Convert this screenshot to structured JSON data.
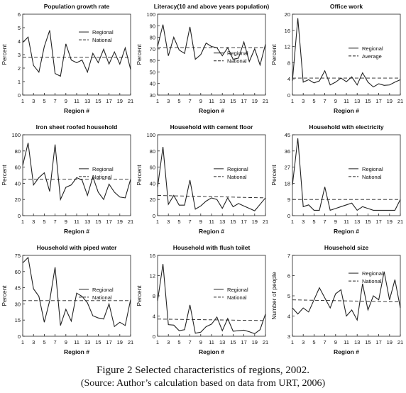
{
  "caption": {
    "line1": "Figure 2   Selected characteristics of regions, 2002.",
    "line2": "(Source: Author’s calculation based on data from URT, 2006)"
  },
  "colors": {
    "line": "#222222",
    "background": "#ffffff"
  },
  "chart_data": [
    {
      "type": "line",
      "title": "Population growth rate",
      "xlabel": "Region #",
      "ylabel": "Percent",
      "xlim": [
        1,
        21
      ],
      "ylim": [
        0,
        6
      ],
      "yticks": [
        0,
        1,
        2,
        3,
        4,
        5,
        6
      ],
      "xticks": [
        1,
        3,
        5,
        7,
        9,
        11,
        13,
        15,
        17,
        19,
        21
      ],
      "grid": false,
      "legend": "top-right",
      "series": [
        {
          "name": "Regional",
          "style": "solid",
          "x": [
            1,
            2,
            3,
            4,
            5,
            6,
            7,
            8,
            9,
            10,
            11,
            12,
            13,
            14,
            15,
            16,
            17,
            18,
            19,
            20,
            21
          ],
          "values": [
            3.9,
            4.3,
            2.2,
            1.7,
            3.6,
            4.8,
            1.6,
            1.4,
            3.8,
            2.6,
            2.4,
            2.6,
            1.7,
            3.1,
            2.4,
            3.4,
            2.3,
            3.2,
            2.3,
            3.5,
            1.9
          ]
        },
        {
          "name": "National",
          "style": "dashed",
          "x": [
            1,
            21
          ],
          "values": [
            2.8,
            2.8
          ]
        }
      ]
    },
    {
      "type": "line",
      "title": "Literacy(10 and above years population)",
      "xlabel": "Region #",
      "ylabel": "Percent",
      "xlim": [
        1,
        21
      ],
      "ylim": [
        30,
        100
      ],
      "yticks": [
        30,
        40,
        50,
        60,
        70,
        80,
        90,
        100
      ],
      "xticks": [
        1,
        3,
        5,
        7,
        9,
        11,
        13,
        15,
        17,
        19,
        21
      ],
      "grid": false,
      "legend": "right",
      "series": [
        {
          "name": "Regional",
          "style": "solid",
          "x": [
            1,
            2,
            3,
            4,
            5,
            6,
            7,
            8,
            9,
            10,
            11,
            12,
            13,
            14,
            15,
            16,
            17,
            18,
            19,
            20,
            21
          ],
          "values": [
            72,
            91,
            64,
            80,
            69,
            66,
            89,
            61,
            65,
            75,
            72,
            71,
            64,
            71,
            61,
            62,
            76,
            59,
            70,
            56,
            74
          ]
        },
        {
          "name": "National",
          "style": "dashed",
          "x": [
            1,
            21
          ],
          "values": [
            71,
            71
          ]
        }
      ]
    },
    {
      "type": "line",
      "title": "Office work",
      "xlabel": "Region #",
      "ylabel": "Percent",
      "xlim": [
        1,
        21
      ],
      "ylim": [
        0,
        20
      ],
      "yticks": [
        0,
        4,
        8,
        12,
        16,
        20
      ],
      "xticks": [
        1,
        3,
        5,
        7,
        9,
        11,
        13,
        15,
        17,
        19,
        21
      ],
      "grid": false,
      "legend": "right",
      "series": [
        {
          "name": "Regional",
          "style": "solid",
          "x": [
            1,
            2,
            3,
            4,
            5,
            6,
            7,
            8,
            9,
            10,
            11,
            12,
            13,
            14,
            15,
            16,
            17,
            18,
            19,
            20,
            21
          ],
          "values": [
            3.5,
            19,
            3.2,
            3.8,
            3.0,
            3.5,
            6,
            2.5,
            3.2,
            4.2,
            3.3,
            4.5,
            2.5,
            5.5,
            3.2,
            2.0,
            2.8,
            2.4,
            2.5,
            3.2,
            3.8
          ]
        },
        {
          "name": "Average",
          "style": "dashed",
          "x": [
            1,
            21
          ],
          "values": [
            4.2,
            4.2
          ]
        }
      ]
    },
    {
      "type": "line",
      "title": "Iron sheet roofed household",
      "xlabel": "Region #",
      "ylabel": "Percent",
      "xlim": [
        1,
        21
      ],
      "ylim": [
        0,
        100
      ],
      "yticks": [
        0,
        20,
        40,
        60,
        80,
        100
      ],
      "xticks": [
        1,
        3,
        5,
        7,
        9,
        11,
        13,
        15,
        17,
        19,
        21
      ],
      "grid": false,
      "legend": "right",
      "series": [
        {
          "name": "Regional",
          "style": "solid",
          "x": [
            1,
            2,
            3,
            4,
            5,
            6,
            7,
            8,
            9,
            10,
            11,
            12,
            13,
            14,
            15,
            16,
            17,
            18,
            19,
            20,
            21
          ],
          "values": [
            62,
            90,
            38,
            47,
            53,
            30,
            88,
            20,
            35,
            38,
            47,
            44,
            25,
            48,
            29,
            20,
            39,
            29,
            23,
            22,
            45
          ]
        },
        {
          "name": "National",
          "style": "dashed",
          "x": [
            1,
            21
          ],
          "values": [
            45,
            45
          ]
        }
      ]
    },
    {
      "type": "line",
      "title": "Household with cement floor",
      "xlabel": "Region #",
      "ylabel": "Percent",
      "xlim": [
        1,
        21
      ],
      "ylim": [
        0,
        100
      ],
      "yticks": [
        0,
        20,
        40,
        60,
        80,
        100
      ],
      "xticks": [
        1,
        3,
        5,
        7,
        9,
        11,
        13,
        15,
        17,
        19,
        21
      ],
      "grid": false,
      "legend": "right",
      "series": [
        {
          "name": "Regional",
          "style": "solid",
          "x": [
            1,
            2,
            3,
            4,
            5,
            6,
            7,
            8,
            9,
            10,
            11,
            12,
            13,
            14,
            15,
            16,
            17,
            18,
            19,
            20,
            21
          ],
          "values": [
            35,
            85,
            14,
            25,
            13,
            13,
            44,
            8,
            12,
            18,
            22,
            20,
            9,
            22,
            11,
            15,
            12,
            9,
            6,
            14,
            22
          ]
        },
        {
          "name": "National",
          "style": "dashed",
          "x": [
            1,
            21
          ],
          "values": [
            25,
            22
          ]
        }
      ]
    },
    {
      "type": "line",
      "title": "Household with electricity",
      "xlabel": "Region #",
      "ylabel": "Percent",
      "xlim": [
        1,
        21
      ],
      "ylim": [
        0,
        45
      ],
      "yticks": [
        0,
        9,
        18,
        27,
        36,
        45
      ],
      "xticks": [
        1,
        3,
        5,
        7,
        9,
        11,
        13,
        15,
        17,
        19,
        21
      ],
      "grid": false,
      "legend": "right",
      "series": [
        {
          "name": "Regional",
          "style": "solid",
          "x": [
            1,
            2,
            3,
            4,
            5,
            6,
            7,
            8,
            9,
            10,
            11,
            12,
            13,
            14,
            15,
            16,
            17,
            18,
            19,
            20,
            21
          ],
          "values": [
            17,
            43,
            5,
            6,
            3,
            3,
            16,
            3,
            4,
            5,
            6,
            7,
            3,
            5,
            4,
            3,
            3,
            3,
            3,
            3,
            9
          ]
        },
        {
          "name": "National",
          "style": "dashed",
          "x": [
            1,
            21
          ],
          "values": [
            9,
            9
          ]
        }
      ]
    },
    {
      "type": "line",
      "title": "Household with piped water",
      "xlabel": "Region #",
      "ylabel": "Percent",
      "xlim": [
        1,
        21
      ],
      "ylim": [
        0,
        75
      ],
      "yticks": [
        0,
        15,
        30,
        45,
        60,
        75
      ],
      "xticks": [
        1,
        3,
        5,
        7,
        9,
        11,
        13,
        15,
        17,
        19,
        21
      ],
      "grid": false,
      "legend": "right",
      "series": [
        {
          "name": "Regional",
          "style": "solid",
          "x": [
            1,
            2,
            3,
            4,
            5,
            6,
            7,
            8,
            9,
            10,
            11,
            12,
            13,
            14,
            15,
            16,
            17,
            18,
            19,
            20,
            21
          ],
          "values": [
            68,
            73,
            44,
            37,
            13,
            33,
            64,
            10,
            25,
            14,
            40,
            37,
            31,
            19,
            17,
            16,
            30,
            9,
            13,
            10,
            34
          ]
        },
        {
          "name": "National",
          "style": "dashed",
          "x": [
            1,
            21
          ],
          "values": [
            33,
            33
          ]
        }
      ]
    },
    {
      "type": "line",
      "title": "Household with flush toilet",
      "xlabel": "Region #",
      "ylabel": "Percent",
      "xlim": [
        1,
        21
      ],
      "ylim": [
        0,
        16
      ],
      "yticks": [
        0,
        4,
        8,
        12,
        16
      ],
      "xticks": [
        1,
        3,
        5,
        7,
        9,
        11,
        13,
        15,
        17,
        19,
        21
      ],
      "grid": false,
      "legend": "right",
      "series": [
        {
          "name": "Regional",
          "style": "solid",
          "x": [
            1,
            2,
            3,
            4,
            5,
            6,
            7,
            8,
            9,
            10,
            11,
            12,
            13,
            14,
            15,
            16,
            17,
            18,
            19,
            20,
            21
          ],
          "values": [
            7,
            14.3,
            2.3,
            2.2,
            1.1,
            1.3,
            6.2,
            0.6,
            0.8,
            1.9,
            2.4,
            3.8,
            1.1,
            3.5,
            1.0,
            1.1,
            1.2,
            0.9,
            0.5,
            1.3,
            4.4
          ]
        },
        {
          "name": "National",
          "style": "dashed",
          "x": [
            1,
            21
          ],
          "values": [
            3.4,
            3.1
          ]
        }
      ]
    },
    {
      "type": "line",
      "title": "Household size",
      "xlabel": "Region #",
      "ylabel": "Number of people",
      "xlim": [
        1,
        21
      ],
      "ylim": [
        3,
        7
      ],
      "yticks": [
        3,
        4,
        5,
        6,
        7
      ],
      "xticks": [
        1,
        3,
        5,
        7,
        9,
        11,
        13,
        15,
        17,
        19,
        21
      ],
      "grid": false,
      "legend": "top-right",
      "series": [
        {
          "name": "Regional",
          "style": "solid",
          "x": [
            1,
            2,
            3,
            4,
            5,
            6,
            7,
            8,
            9,
            10,
            11,
            12,
            13,
            14,
            15,
            16,
            17,
            18,
            19,
            20,
            21
          ],
          "values": [
            4.4,
            4.1,
            4.4,
            4.2,
            4.8,
            5.4,
            4.9,
            4.4,
            5.1,
            5.3,
            4.0,
            4.3,
            3.8,
            5.6,
            4.3,
            5.0,
            4.8,
            6.2,
            4.8,
            5.8,
            4.4
          ]
        },
        {
          "name": "National",
          "style": "dashed",
          "x": [
            1,
            21
          ],
          "values": [
            4.8,
            4.7
          ]
        }
      ]
    }
  ]
}
